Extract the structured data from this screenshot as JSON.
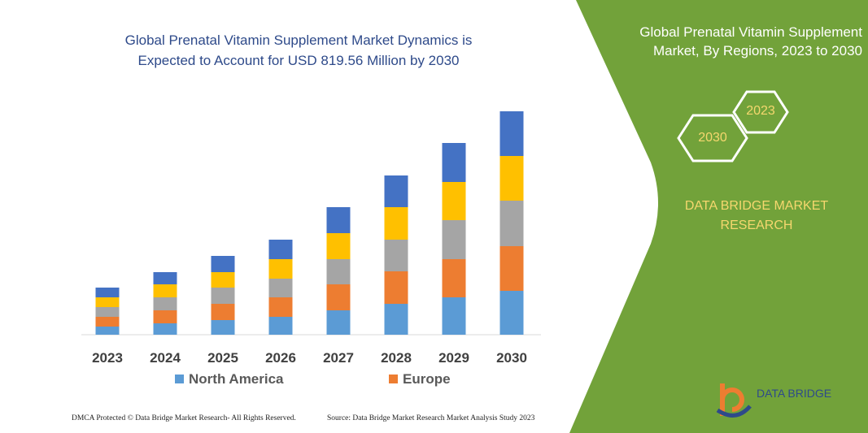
{
  "chart_data": {
    "type": "bar",
    "stacked": true,
    "title": "Global Prenatal Vitamin Supplement Market Dynamics is Expected to Account for USD 819.56 Million by 2030",
    "categories": [
      "2023",
      "2024",
      "2025",
      "2026",
      "2027",
      "2028",
      "2029",
      "2030"
    ],
    "series": [
      {
        "name": "North America",
        "color": "#5b9bd5",
        "values": [
          10,
          14,
          18,
          22,
          30,
          38,
          46,
          54
        ]
      },
      {
        "name": "Europe",
        "color": "#ed7d31",
        "values": [
          12,
          16,
          20,
          24,
          32,
          40,
          47,
          55
        ]
      },
      {
        "color": "#a5a5a5",
        "values": [
          12,
          16,
          20,
          23,
          31,
          39,
          48,
          56
        ]
      },
      {
        "color": "#ffc000",
        "values": [
          12,
          16,
          19,
          24,
          32,
          40,
          47,
          55
        ]
      },
      {
        "color": "#4472c4",
        "values": [
          12,
          15,
          20,
          24,
          32,
          39,
          48,
          55
        ]
      }
    ]
  },
  "panel": {
    "title": "Global Prenatal Vitamin Supplement Market, By Regions, 2023 to 2030",
    "hex_labels": [
      "2023",
      "2030"
    ],
    "brand": "DATA BRIDGE MARKET RESEARCH"
  },
  "logo": "DATA BRIDGE",
  "footer": {
    "left": "DMCA Protected © Data Bridge Market Research- All Rights Reserved.",
    "right": "Source: Data Bridge Market Research Market Analysis Study 2023"
  }
}
